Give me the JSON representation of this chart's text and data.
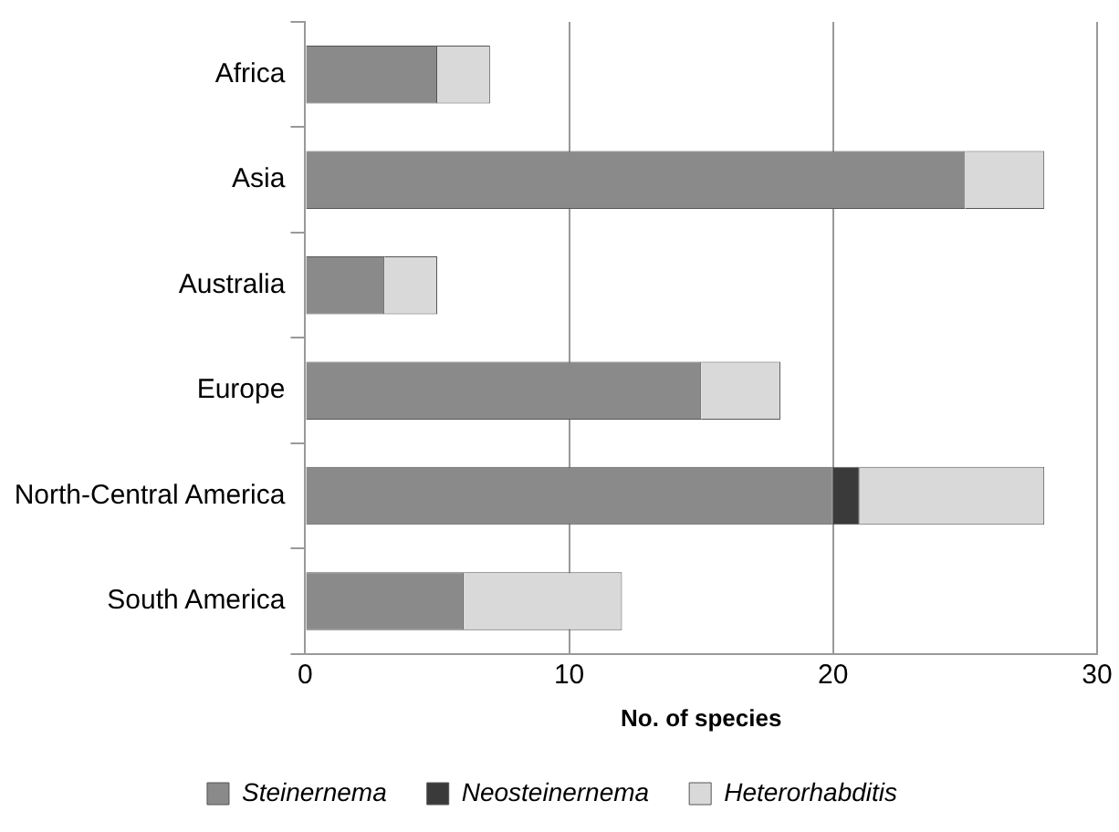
{
  "chart_data": {
    "type": "bar",
    "orientation": "horizontal",
    "stacked": true,
    "xlabel": "No. of species",
    "categories": [
      "Africa",
      "Asia",
      "Australia",
      "Europe",
      "North-Central America",
      "South America"
    ],
    "series": [
      {
        "name": "Steinernema",
        "color": "#8a8a8a",
        "values": [
          5,
          25,
          3,
          15,
          20,
          6
        ]
      },
      {
        "name": "Neosteinernema",
        "color": "#3a3a3a",
        "values": [
          0,
          0,
          0,
          0,
          1,
          0
        ]
      },
      {
        "name": "Heterorhabditis",
        "color": "#d9d9d9",
        "values": [
          2,
          3,
          2,
          3,
          7,
          6
        ]
      }
    ],
    "xlim": [
      0,
      30
    ],
    "xticks": [
      0,
      10,
      20,
      30
    ],
    "grid": "x",
    "legend": "bottom"
  }
}
